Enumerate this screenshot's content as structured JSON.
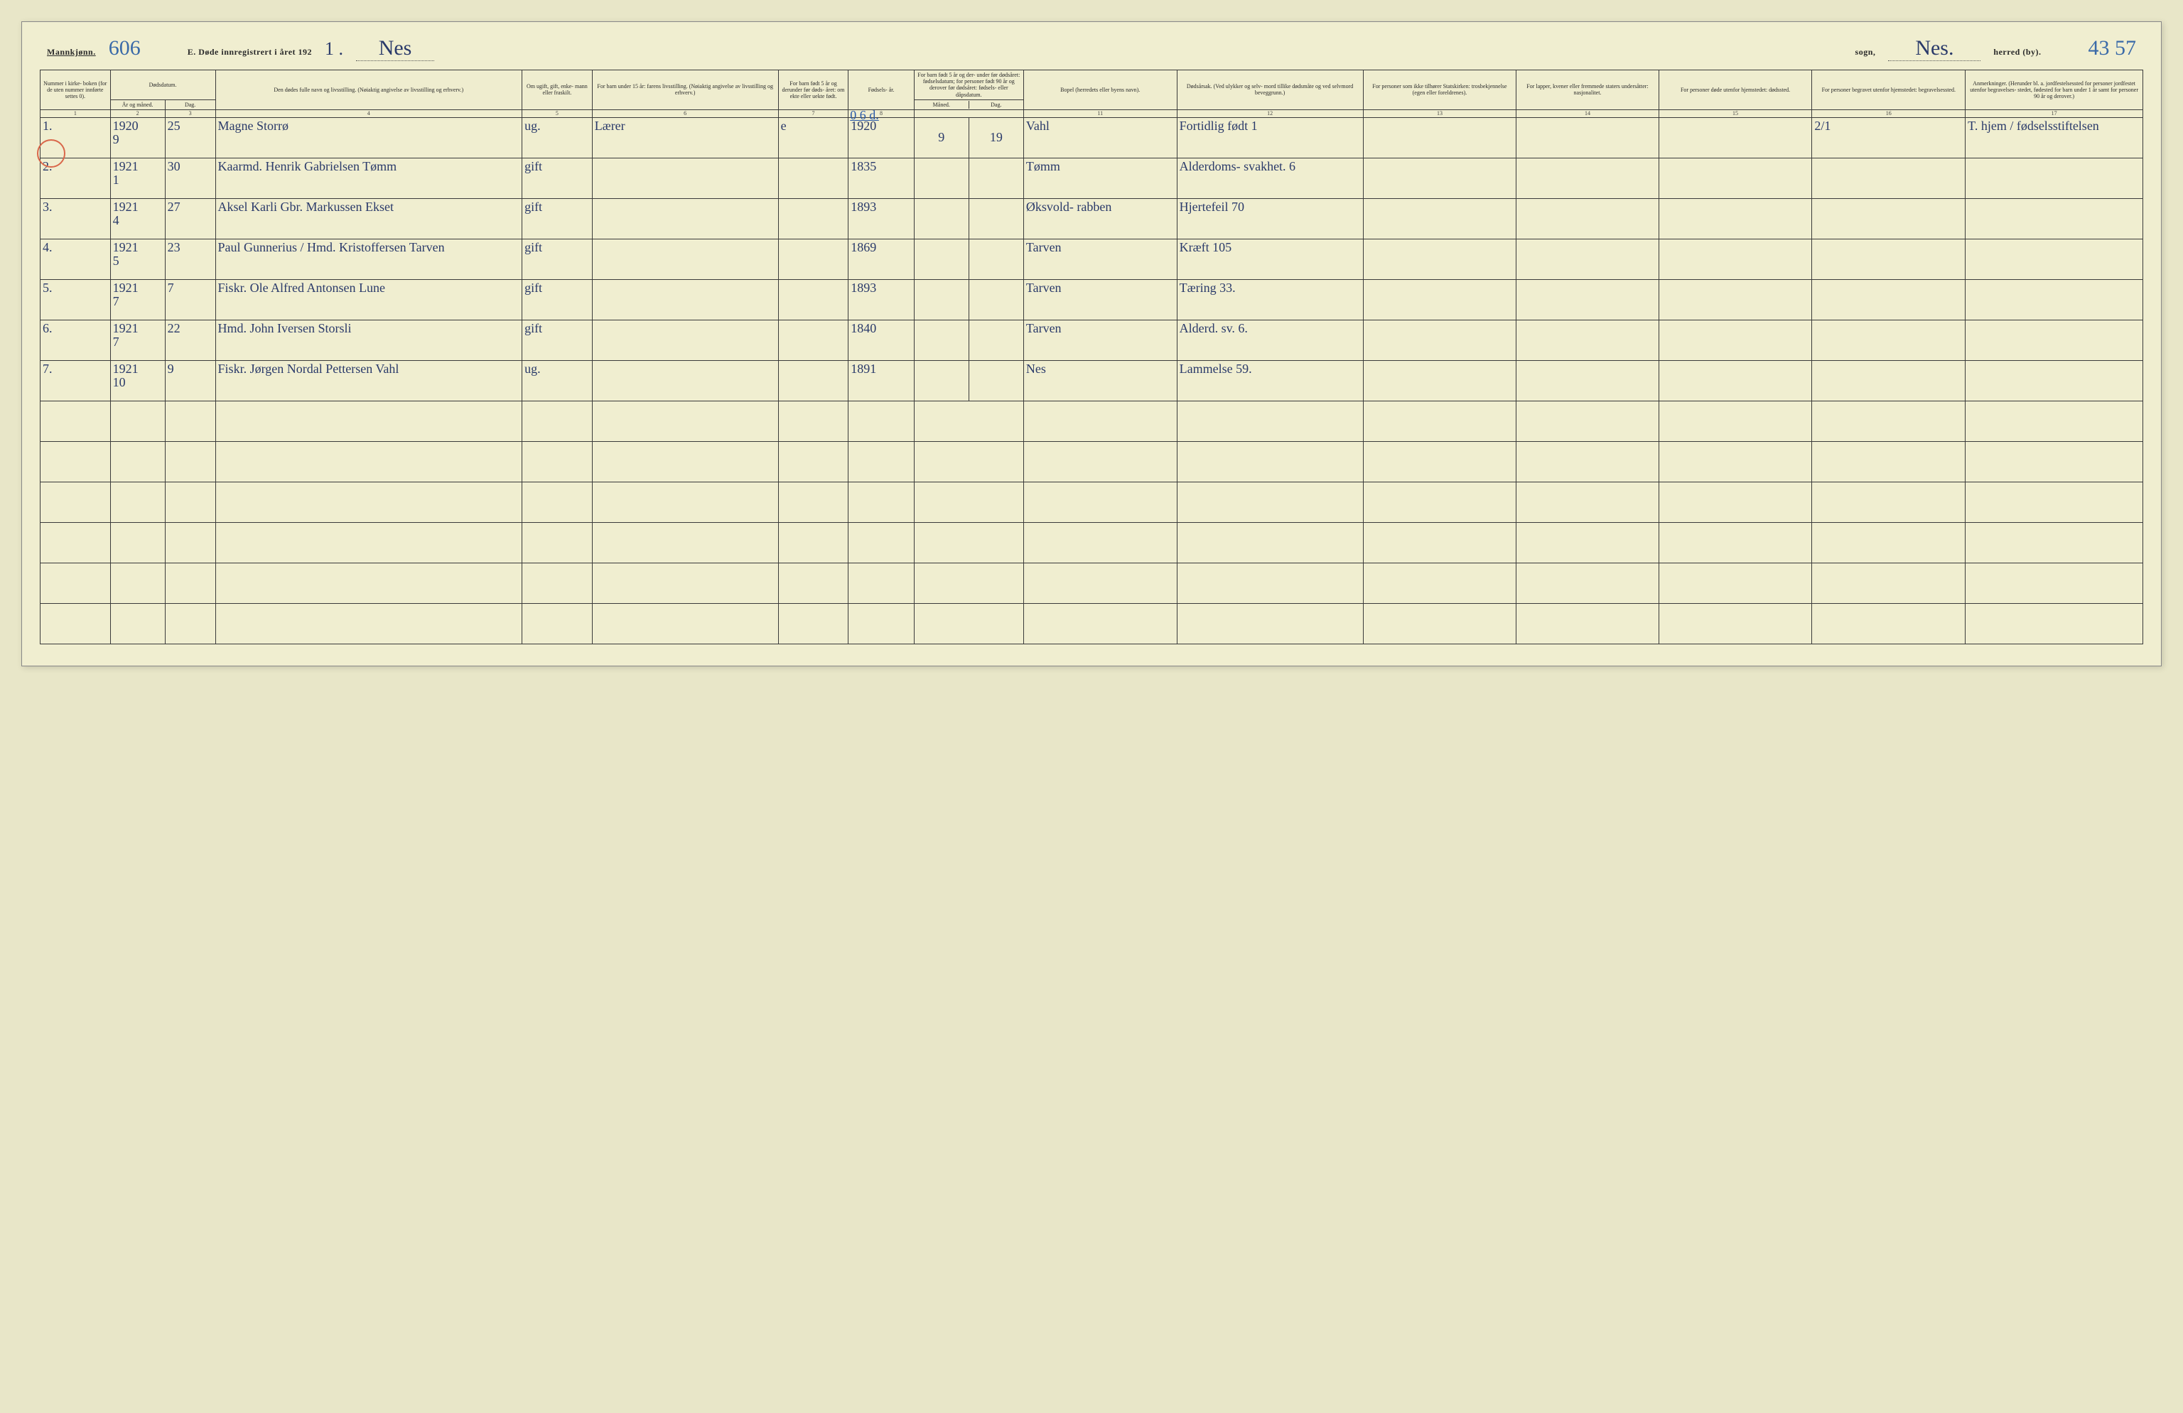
{
  "header": {
    "gender_label": "Mannkjønn.",
    "page_no_hand": "606",
    "form_title_prefix": "E.  Døde innregistrert i året 192",
    "year_suffix_hand": "1 .",
    "sogn_hand": "Nes",
    "sogn_label": "sogn,",
    "herred_hand": "Nes.",
    "herred_label": "herred (by).",
    "right_no_hand": "43 57"
  },
  "columns": {
    "c1": "Nummer i kirke- boken (for de uten nummer innførte settes 0).",
    "c2_top": "Dødsdatum.",
    "c2a": "År og måned.",
    "c2b": "Dag.",
    "c4": "Den dødes fulle navn og livsstilling. (Nøiaktig angivelse av livsstilling og erhverv.)",
    "c5": "Om ugift, gift, enke- mann eller fraskilt.",
    "c6": "For barn under 15 år: farens livsstilling. (Nøiaktig angivelse av livsstilling og erhverv.)",
    "c7": "For barn født 5 år og derunder før døds- året: om ekte eller uekte født.",
    "c8": "Fødsels- år.",
    "c9_top": "For barn født 5 år og der- under før dødsåret: fødselsdatum; for personer født 90 år og derover før dødsåret: fødsels- eller dåpsdatum.",
    "c9a": "Måned.",
    "c9b": "Dag.",
    "c11": "Bopel (herredets eller byens navn).",
    "c12": "Dødsårsak. (Ved ulykker og selv- mord tillike dødsmåte og ved selvmord beveggrunn.)",
    "c13": "For personer som ikke tilhører Statskirken: trosbekjennelse (egen eller foreldrenes).",
    "c14": "For lapper, kvener eller fremmede staters undersåtter: nasjonalitet.",
    "c15": "For personer døde utenfor hjemstedet: dødssted.",
    "c16": "For personer begravet utenfor hjemstedet: begravelsessted.",
    "c17": "Anmerkninger. (Herunder bl. a. jordfestelsessted for personer jordfestet utenfor begravelses- stedet, fødested for barn under 1 år samt for personer 90 år og derover.)"
  },
  "colnums": [
    "1",
    "2",
    "3",
    "4",
    "5",
    "6",
    "7",
    "8",
    "",
    "11",
    "12",
    "13",
    "14",
    "15",
    "16",
    "17"
  ],
  "row1_annot": "0 6 d.",
  "rows": [
    {
      "n": "1.",
      "ym": "1920 9",
      "d": "25",
      "name": "Magne Storrø",
      "ms": "ug.",
      "father": "Lærer",
      "ekte": "e",
      "faar": "1920",
      "fm": "9",
      "fd": "19",
      "bopel": "Vahl",
      "cause": "Fortidlig født 1",
      "c16": "2/1",
      "c17": "T. hjem / fødselsstiftelsen"
    },
    {
      "n": "2.",
      "ym": "1921 1",
      "d": "30",
      "name": "Kaarmd. Henrik Gabrielsen Tømm",
      "ms": "gift",
      "father": "",
      "ekte": "",
      "faar": "1835",
      "fm": "",
      "fd": "",
      "bopel": "Tømm",
      "cause": "Alderdoms- svakhet. 6",
      "c16": "",
      "c17": ""
    },
    {
      "n": "3.",
      "ym": "1921 4",
      "d": "27",
      "name": "Aksel Karli Gbr. Markussen Ekset",
      "ms": "gift",
      "father": "",
      "ekte": "",
      "faar": "1893",
      "fm": "",
      "fd": "",
      "bopel": "Øksvold- rabben",
      "cause": "Hjertefeil 70",
      "c16": "",
      "c17": ""
    },
    {
      "n": "4.",
      "ym": "1921 5",
      "d": "23",
      "name": "Paul Gunnerius / Hmd. Kristoffersen Tarven",
      "ms": "gift",
      "father": "",
      "ekte": "",
      "faar": "1869",
      "fm": "",
      "fd": "",
      "bopel": "Tarven",
      "cause": "Kræft 105",
      "c16": "",
      "c17": ""
    },
    {
      "n": "5.",
      "ym": "1921 7",
      "d": "7",
      "name": "Fiskr. Ole Alfred Antonsen Lune",
      "ms": "gift",
      "father": "",
      "ekte": "",
      "faar": "1893",
      "fm": "",
      "fd": "",
      "bopel": "Tarven",
      "cause": "Tæring 33.",
      "c16": "",
      "c17": ""
    },
    {
      "n": "6.",
      "ym": "1921 7",
      "d": "22",
      "name": "Hmd. John Iversen Storsli",
      "ms": "gift",
      "father": "",
      "ekte": "",
      "faar": "1840",
      "fm": "",
      "fd": "",
      "bopel": "Tarven",
      "cause": "Alderd. sv. 6.",
      "c16": "",
      "c17": ""
    },
    {
      "n": "7.",
      "ym": "1921 10",
      "d": "9",
      "name": "Fiskr. Jørgen Nordal Pettersen Vahl",
      "ms": "ug.",
      "father": "",
      "ekte": "",
      "faar": "1891",
      "fm": "",
      "fd": "",
      "bopel": "Nes",
      "cause": "Lammelse 59.",
      "c16": "",
      "c17": ""
    }
  ],
  "widths": {
    "c1": "3.2%",
    "c2a": "2.5%",
    "c2b": "2.3%",
    "c4": "14%",
    "c5": "3.2%",
    "c6": "8.5%",
    "c7": "3.2%",
    "c8": "3%",
    "c9": "5%",
    "c11": "7%",
    "c12": "8.5%",
    "c13": "7%",
    "c14": "6.5%",
    "c15": "7%",
    "c16": "7%",
    "c17": "8.1%"
  }
}
